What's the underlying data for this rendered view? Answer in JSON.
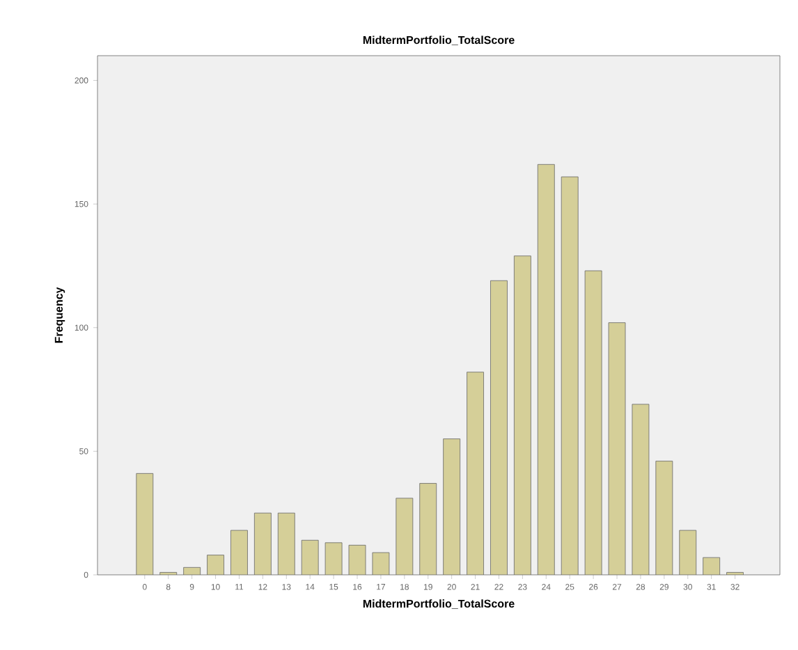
{
  "chart_data": {
    "type": "bar",
    "title": "MidtermPortfolio_TotalScore",
    "xlabel": "MidtermPortfolio_TotalScore",
    "ylabel": "Frequency",
    "categories": [
      "0",
      "8",
      "9",
      "10",
      "11",
      "12",
      "13",
      "14",
      "15",
      "16",
      "17",
      "18",
      "19",
      "20",
      "21",
      "22",
      "23",
      "24",
      "25",
      "26",
      "27",
      "28",
      "29",
      "30",
      "31",
      "32"
    ],
    "values": [
      41,
      1,
      3,
      8,
      18,
      25,
      25,
      14,
      13,
      12,
      9,
      31,
      37,
      55,
      82,
      119,
      129,
      166,
      161,
      123,
      102,
      69,
      46,
      18,
      7,
      1
    ],
    "color": "#d5cf98",
    "ylim": [
      0,
      210
    ],
    "yticks": [
      0,
      50,
      100,
      150,
      200
    ],
    "grid": false
  }
}
